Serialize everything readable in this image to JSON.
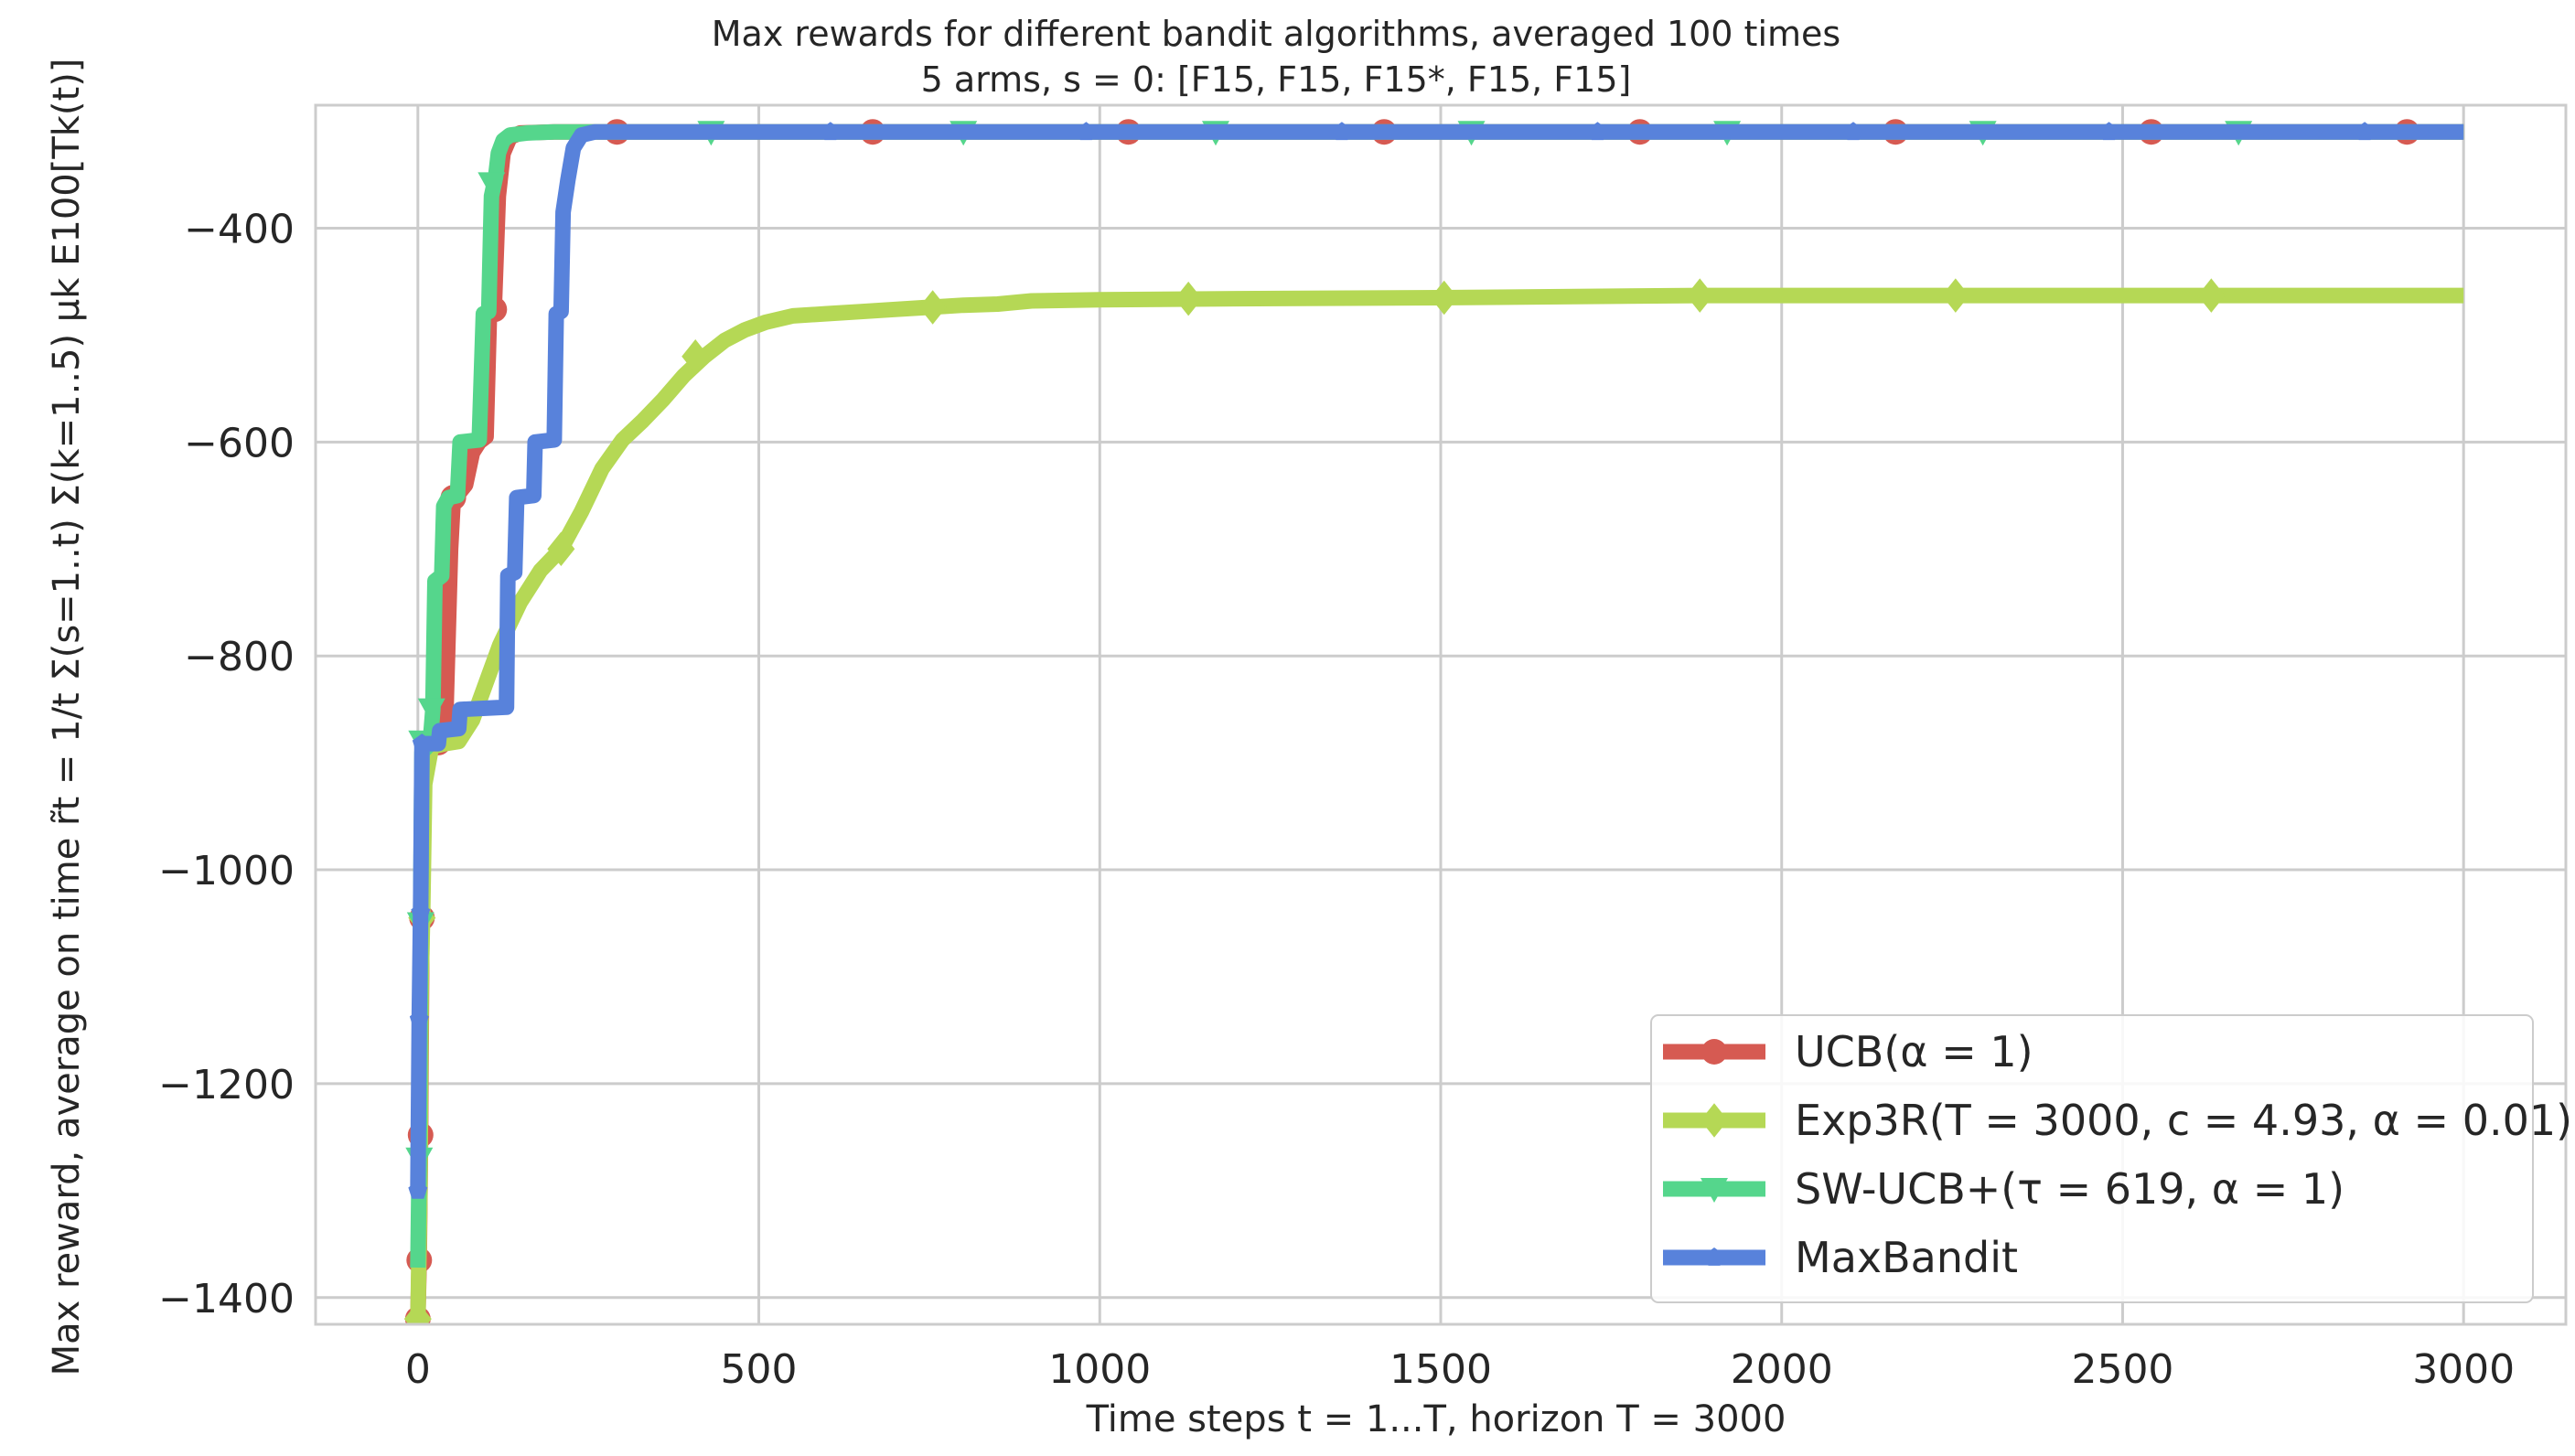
{
  "chart_data": {
    "type": "line",
    "title": "Max rewards for different bandit algorithms, averaged 100 times",
    "subtitle": "5 arms, s = 0: [F15, F15, F15*, F15, F15]",
    "xlabel": "Time steps t = 1...T, horizon T = 3000",
    "ylabel": "Max reward, average on time r̃t = 1/t Σ(s=1..t) Σ(k=1..5) μk E100[Tk(t)]",
    "xlim": [
      -150,
      3150
    ],
    "ylim": [
      -1425,
      -285
    ],
    "x_ticks": [
      0,
      500,
      1000,
      1500,
      2000,
      2500,
      3000
    ],
    "y_ticks": [
      -1400,
      -1200,
      -1000,
      -800,
      -600,
      -400
    ],
    "x_tick_labels": [
      "0",
      "500",
      "1000",
      "1500",
      "2000",
      "2500",
      "3000"
    ],
    "y_tick_labels": [
      "−1400",
      "−1200",
      "−1000",
      "−800",
      "−600",
      "−400"
    ],
    "grid": true,
    "legend_position": "bottom-right",
    "series": [
      {
        "name": "UCB(α = 1)",
        "color": "#d65a52",
        "marker": "circle",
        "points": [
          [
            0,
            -1420
          ],
          [
            2,
            -1365
          ],
          [
            4,
            -1248
          ],
          [
            6,
            -1045
          ],
          [
            8,
            -900
          ],
          [
            15,
            -885
          ],
          [
            25,
            -882
          ],
          [
            40,
            -880
          ],
          [
            48,
            -700
          ],
          [
            52,
            -652
          ],
          [
            60,
            -648
          ],
          [
            70,
            -640
          ],
          [
            80,
            -610
          ],
          [
            90,
            -600
          ],
          [
            100,
            -595
          ],
          [
            105,
            -480
          ],
          [
            112,
            -476
          ],
          [
            118,
            -370
          ],
          [
            125,
            -330
          ],
          [
            135,
            -315
          ],
          [
            150,
            -311
          ],
          [
            200,
            -310
          ],
          [
            3000,
            -310
          ]
        ],
        "markers": [
          [
            0,
            -1420
          ],
          [
            2,
            -1365
          ],
          [
            4,
            -1248
          ],
          [
            6,
            -1045
          ],
          [
            30,
            -881
          ],
          [
            52,
            -652
          ],
          [
            112,
            -476
          ],
          [
            292,
            -310
          ],
          [
            667,
            -310
          ],
          [
            1042,
            -310
          ],
          [
            1417,
            -310
          ],
          [
            1792,
            -310
          ],
          [
            2167,
            -310
          ],
          [
            2542,
            -310
          ],
          [
            2917,
            -310
          ]
        ]
      },
      {
        "name": "Exp3R(T = 3000, c = 4.93, α = 0.01)",
        "color": "#b5d855",
        "marker": "diamond",
        "points": [
          [
            0,
            -1425
          ],
          [
            3,
            -1300
          ],
          [
            5,
            -1100
          ],
          [
            7,
            -1045
          ],
          [
            10,
            -920
          ],
          [
            20,
            -885
          ],
          [
            40,
            -882
          ],
          [
            60,
            -880
          ],
          [
            80,
            -860
          ],
          [
            100,
            -825
          ],
          [
            120,
            -790
          ],
          [
            150,
            -750
          ],
          [
            180,
            -720
          ],
          [
            210,
            -700
          ],
          [
            240,
            -665
          ],
          [
            270,
            -625
          ],
          [
            300,
            -598
          ],
          [
            330,
            -580
          ],
          [
            360,
            -560
          ],
          [
            390,
            -538
          ],
          [
            420,
            -520
          ],
          [
            450,
            -505
          ],
          [
            480,
            -495
          ],
          [
            510,
            -488
          ],
          [
            550,
            -482
          ],
          [
            600,
            -480
          ],
          [
            650,
            -478
          ],
          [
            700,
            -476
          ],
          [
            750,
            -474
          ],
          [
            800,
            -472
          ],
          [
            850,
            -471
          ],
          [
            900,
            -468
          ],
          [
            1000,
            -467
          ],
          [
            1200,
            -466
          ],
          [
            1500,
            -465
          ],
          [
            1880,
            -463
          ],
          [
            2250,
            -463
          ],
          [
            2630,
            -463
          ],
          [
            3000,
            -463
          ]
        ],
        "markers": [
          [
            0,
            -1420
          ],
          [
            6,
            -1045
          ],
          [
            210,
            -700
          ],
          [
            407,
            -520
          ],
          [
            755,
            -474
          ],
          [
            1130,
            -466
          ],
          [
            1505,
            -465
          ],
          [
            1880,
            -463
          ],
          [
            2255,
            -463
          ],
          [
            2630,
            -463
          ]
        ]
      },
      {
        "name": "SW-UCB+(τ = 619, α = 1)",
        "color": "#55d68c",
        "marker": "triangle",
        "points": [
          [
            0,
            -1372
          ],
          [
            2,
            -1270
          ],
          [
            4,
            -1050
          ],
          [
            6,
            -890
          ],
          [
            18,
            -882
          ],
          [
            22,
            -850
          ],
          [
            25,
            -730
          ],
          [
            35,
            -725
          ],
          [
            38,
            -660
          ],
          [
            45,
            -652
          ],
          [
            58,
            -650
          ],
          [
            62,
            -600
          ],
          [
            90,
            -598
          ],
          [
            96,
            -480
          ],
          [
            104,
            -478
          ],
          [
            108,
            -370
          ],
          [
            114,
            -352
          ],
          [
            118,
            -330
          ],
          [
            125,
            -318
          ],
          [
            135,
            -313
          ],
          [
            160,
            -311
          ],
          [
            200,
            -310
          ],
          [
            3000,
            -310
          ]
        ],
        "markers": [
          [
            2,
            -1270
          ],
          [
            4,
            -1050
          ],
          [
            6,
            -880
          ],
          [
            20,
            -850
          ],
          [
            108,
            -358
          ],
          [
            430,
            -310
          ],
          [
            800,
            -310
          ],
          [
            1170,
            -310
          ],
          [
            1545,
            -310
          ],
          [
            1920,
            -310
          ],
          [
            2295,
            -310
          ],
          [
            2670,
            -310
          ]
        ]
      },
      {
        "name": "MaxBandit",
        "color": "#5882db",
        "marker": "pentagon",
        "points": [
          [
            0,
            -1300
          ],
          [
            2,
            -1140
          ],
          [
            4,
            -1040
          ],
          [
            6,
            -882
          ],
          [
            30,
            -882
          ],
          [
            32,
            -870
          ],
          [
            60,
            -868
          ],
          [
            62,
            -850
          ],
          [
            130,
            -848
          ],
          [
            132,
            -725
          ],
          [
            142,
            -722
          ],
          [
            145,
            -652
          ],
          [
            170,
            -650
          ],
          [
            172,
            -600
          ],
          [
            200,
            -598
          ],
          [
            203,
            -480
          ],
          [
            210,
            -478
          ],
          [
            213,
            -385
          ],
          [
            220,
            -355
          ],
          [
            228,
            -325
          ],
          [
            240,
            -313
          ],
          [
            260,
            -310
          ],
          [
            3000,
            -310
          ]
        ],
        "markers": [
          [
            0,
            -1300
          ],
          [
            2,
            -1140
          ],
          [
            4,
            -1040
          ],
          [
            6,
            -882
          ],
          [
            605,
            -310
          ],
          [
            980,
            -310
          ],
          [
            1355,
            -310
          ],
          [
            1730,
            -310
          ],
          [
            2105,
            -310
          ],
          [
            2480,
            -310
          ],
          [
            2855,
            -310
          ]
        ]
      }
    ]
  }
}
